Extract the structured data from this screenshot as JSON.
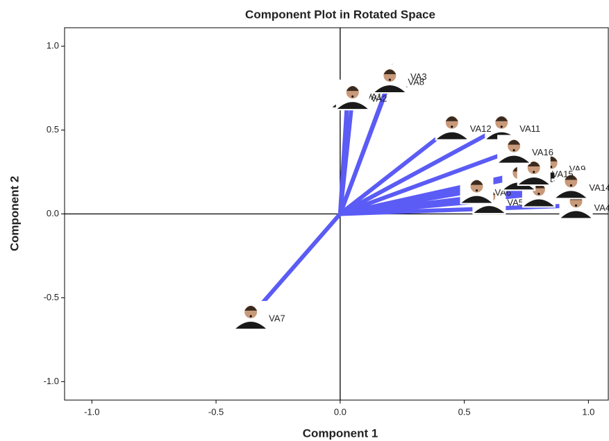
{
  "chart_data": {
    "type": "scatter",
    "title": "Component Plot in Rotated Space",
    "x_label": "Component 1",
    "y_label": "Component 2",
    "color": "#5b5bf5",
    "point_labels": [
      "VA1",
      "VA2",
      "VA3",
      "VA4",
      "VA5",
      "VA6",
      "VA7",
      "VA8",
      "VA9",
      "VA10",
      "VA11",
      "VA12",
      "VA13",
      "VA14",
      "VA15",
      "VA16"
    ],
    "x": [
      0.03,
      0.05,
      0.21,
      0.95,
      0.6,
      0.55,
      -0.36,
      0.2,
      0.85,
      0.8,
      0.65,
      0.45,
      0.72,
      0.93,
      0.78,
      0.7
    ],
    "y": [
      0.71,
      0.7,
      0.83,
      0.05,
      0.08,
      0.14,
      -0.61,
      0.8,
      0.28,
      0.12,
      0.52,
      0.52,
      0.22,
      0.17,
      0.25,
      0.38
    ],
    "xlim": [
      -1.11,
      1.08
    ],
    "ylim": [
      -1.11,
      1.11
    ],
    "xticks": [
      {
        "value": -1,
        "label": "-1.0"
      },
      {
        "value": -0.5,
        "label": "-0.5"
      },
      {
        "value": 0,
        "label": "0.0"
      },
      {
        "value": 0.5,
        "label": "0.5"
      },
      {
        "value": 1,
        "label": "1.0"
      }
    ],
    "yticks": [
      {
        "value": -1,
        "label": "-1.0"
      },
      {
        "value": -0.5,
        "label": "-0.5"
      },
      {
        "value": 0,
        "label": "0.0"
      },
      {
        "value": 0.5,
        "label": "0.5"
      },
      {
        "value": 1,
        "label": "1.0"
      }
    ]
  }
}
